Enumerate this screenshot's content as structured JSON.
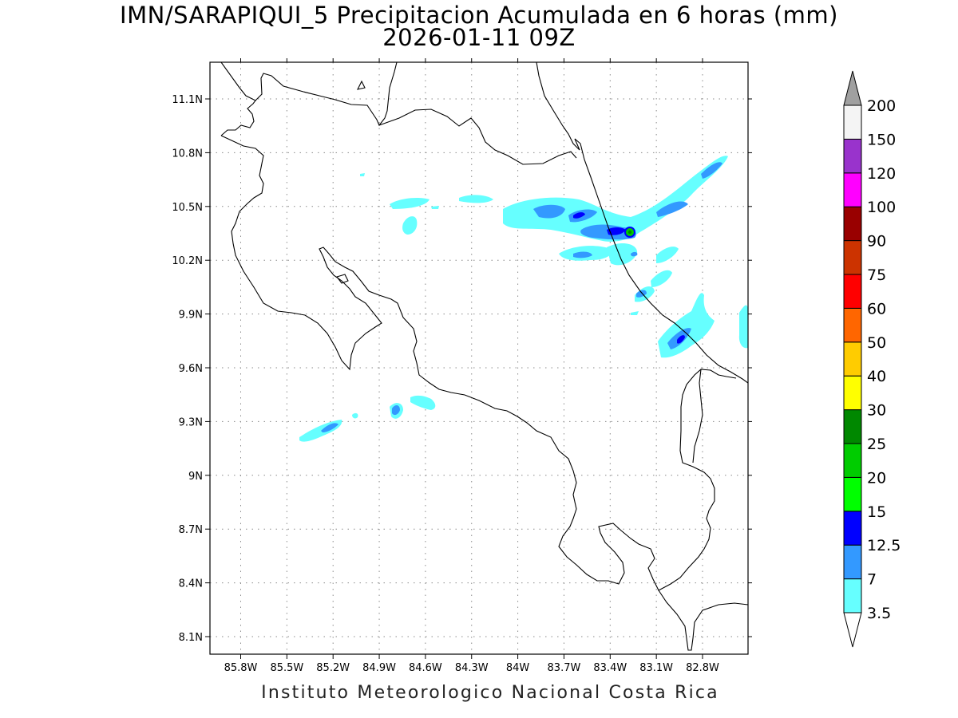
{
  "title_line1": "IMN/SARAPIQUI_5 Precipitacion Acumulada en 6 horas (mm)",
  "title_line2": "2026-01-11 09Z",
  "footer": "Instituto Meteorologico Nacional Costa Rica",
  "map": {
    "lon_range": [
      -86.1,
      -82.4
    ],
    "lat_range": [
      8.0,
      11.3
    ],
    "lon_ticks": [
      "85.8W",
      "85.5W",
      "85.2W",
      "84.9W",
      "84.6W",
      "84.3W",
      "84W",
      "83.7W",
      "83.4W",
      "83.1W",
      "82.8W"
    ],
    "lat_ticks": [
      "11.1N",
      "10.8N",
      "10.5N",
      "10.2N",
      "9.9N",
      "9.6N",
      "9.3N",
      "9N",
      "8.7N",
      "8.4N",
      "8.1N"
    ],
    "grid": true,
    "colors": {
      "coast": "#000000",
      "light": "#66ffff",
      "medium": "#3399ff",
      "heavy": "#0000ff",
      "green": "#00cc00",
      "dark_green": "#008800"
    }
  },
  "colorbar": {
    "colors": [
      "#66ffff",
      "#3399ff",
      "#0000ff",
      "#00ff00",
      "#00cc00",
      "#008800",
      "#ffff00",
      "#ffcc00",
      "#ff6600",
      "#ff0000",
      "#cc3300",
      "#990000",
      "#ff00ff",
      "#9933cc",
      "#f4f4f4"
    ],
    "labels": [
      "3.5",
      "7",
      "12.5",
      "15",
      "20",
      "25",
      "30",
      "40",
      "50",
      "60",
      "75",
      "90",
      "100",
      "120",
      "150",
      "200"
    ],
    "over_color": "#a0a0a0"
  }
}
